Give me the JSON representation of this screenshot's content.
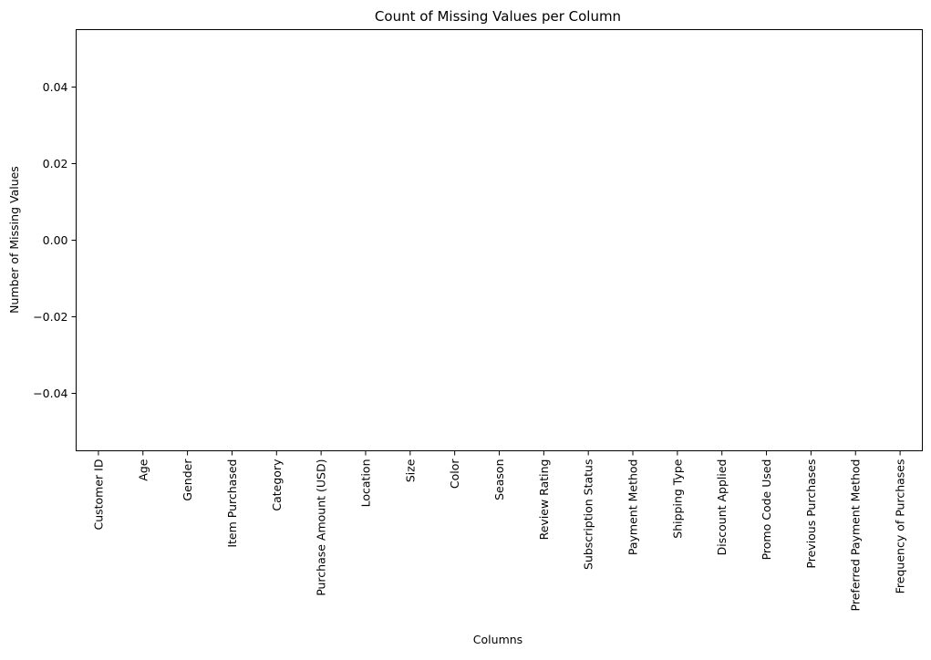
{
  "chart_data": {
    "type": "bar",
    "title": "Count of Missing Values per Column",
    "xlabel": "Columns",
    "ylabel": "Number of Missing Values",
    "categories": [
      "Customer ID",
      "Age",
      "Gender",
      "Item Purchased",
      "Category",
      "Purchase Amount (USD)",
      "Location",
      "Size",
      "Color",
      "Season",
      "Review Rating",
      "Subscription Status",
      "Payment Method",
      "Shipping Type",
      "Discount Applied",
      "Promo Code Used",
      "Previous Purchases",
      "Preferred Payment Method",
      "Frequency of Purchases"
    ],
    "values": [
      0,
      0,
      0,
      0,
      0,
      0,
      0,
      0,
      0,
      0,
      0,
      0,
      0,
      0,
      0,
      0,
      0,
      0,
      0
    ],
    "ylim": [
      -0.055,
      0.055
    ],
    "yticks": [
      -0.04,
      -0.02,
      0.0,
      0.02,
      0.04
    ],
    "ytick_labels": [
      "−0.04",
      "−0.02",
      "0.00",
      "0.02",
      "0.04"
    ],
    "grid": false,
    "legend": "none"
  }
}
